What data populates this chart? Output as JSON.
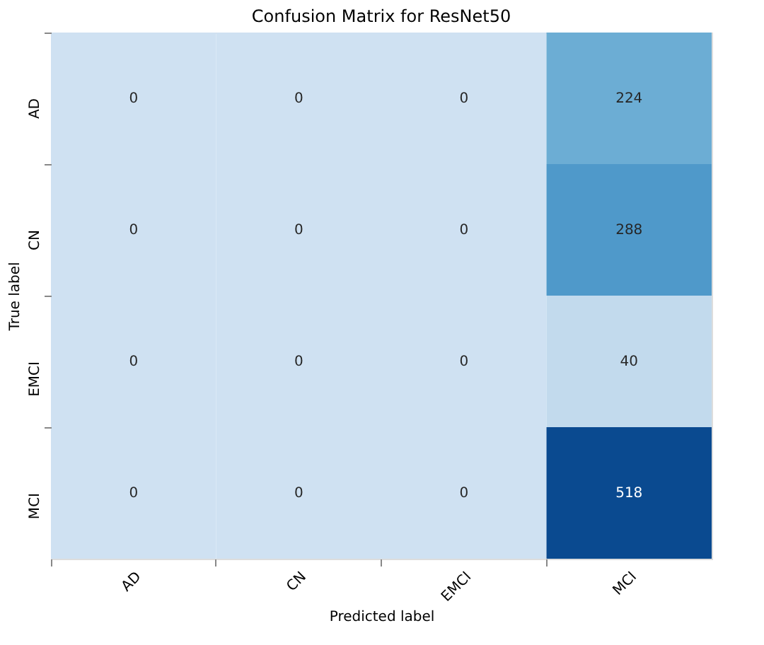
{
  "chart_data": {
    "type": "heatmap",
    "title": "Confusion Matrix for ResNet50",
    "xlabel": "Predicted label",
    "ylabel": "True label",
    "categories": [
      "AD",
      "CN",
      "EMCI",
      "MCI"
    ],
    "y_categories": [
      "AD",
      "CN",
      "EMCI",
      "MCI"
    ],
    "cells": [
      [
        0,
        0,
        0,
        224
      ],
      [
        0,
        0,
        0,
        288
      ],
      [
        0,
        0,
        0,
        40
      ],
      [
        0,
        0,
        0,
        518
      ]
    ],
    "data_labels": true
  }
}
